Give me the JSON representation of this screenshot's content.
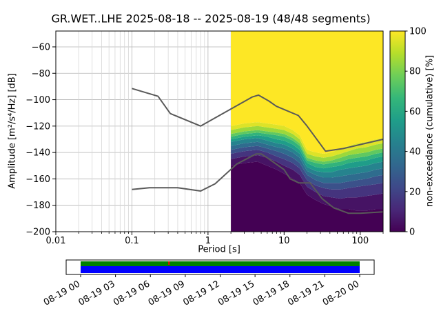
{
  "colors": {
    "noise_model_line": "#595959",
    "grid_major": "#b3b3b3",
    "grid_minor": "#d6d6d6",
    "timeline_green": "#008000",
    "timeline_blue": "#0000ff",
    "gap_red": "#ff0000",
    "viridis": [
      "#440154",
      "#482878",
      "#3e4989",
      "#31688e",
      "#26828e",
      "#1f9e89",
      "#35b779",
      "#6ece58",
      "#b5de2b",
      "#fde725"
    ]
  },
  "chart_data": {
    "type": "heatmap",
    "title": "GR.WET..LHE   2025-08-18 -- 2025-08-19  (48/48 segments)",
    "station": "GR.WET..LHE",
    "date_range": "2025-08-18 -- 2025-08-19",
    "segments": "48/48",
    "xlabel": "Period [s]",
    "ylabel": "Amplitude [m²/s⁴/Hz] [dB]",
    "xscale": "log",
    "xlim": [
      0.01,
      200
    ],
    "ylim": [
      -200,
      -48
    ],
    "x_ticks": [
      {
        "v": 0.01,
        "label": "0.01"
      },
      {
        "v": 0.1,
        "label": "0.1"
      },
      {
        "v": 1,
        "label": "1"
      },
      {
        "v": 10,
        "label": "10"
      },
      {
        "v": 100,
        "label": "100"
      }
    ],
    "y_ticks": [
      {
        "v": -60,
        "label": "−60"
      },
      {
        "v": -80,
        "label": "−80"
      },
      {
        "v": -100,
        "label": "−100"
      },
      {
        "v": -120,
        "label": "−120"
      },
      {
        "v": -140,
        "label": "−140"
      },
      {
        "v": -160,
        "label": "−160"
      },
      {
        "v": -180,
        "label": "−180"
      },
      {
        "v": -200,
        "label": "−200"
      }
    ],
    "colorbar": {
      "label": "non-exceedance (cumulative) [%]",
      "ticks": [
        {
          "v": 0,
          "label": "0"
        },
        {
          "v": 20,
          "label": "20"
        },
        {
          "v": 40,
          "label": "40"
        },
        {
          "v": 60,
          "label": "60"
        },
        {
          "v": 80,
          "label": "80"
        },
        {
          "v": 100,
          "label": "100"
        }
      ]
    },
    "periods_s": [
      2,
      3,
      4.5,
      6,
      8,
      10,
      13,
      16,
      20,
      26,
      33,
      42,
      55,
      70,
      90,
      120,
      160,
      200
    ],
    "percentiles": [
      0,
      10,
      20,
      30,
      40,
      50,
      60,
      70,
      80,
      90,
      100
    ],
    "percentile_curves_db": {
      "0": [
        -150,
        -148,
        -147,
        -150,
        -153,
        -156,
        -160,
        -163,
        -172,
        -176,
        -179,
        -181,
        -183,
        -183,
        -184,
        -184,
        -183,
        -183
      ],
      "10": [
        -145,
        -143,
        -142,
        -144,
        -147,
        -150,
        -153,
        -157,
        -166,
        -170,
        -173,
        -174,
        -175,
        -174,
        -174,
        -173,
        -172,
        -171
      ],
      "20": [
        -141,
        -139,
        -138,
        -140,
        -143,
        -145,
        -148,
        -152,
        -161,
        -165,
        -167,
        -168,
        -168,
        -167,
        -166,
        -165,
        -164,
        -163
      ],
      "30": [
        -138,
        -136,
        -135,
        -137,
        -139,
        -141,
        -144,
        -148,
        -157,
        -161,
        -163,
        -163,
        -163,
        -162,
        -161,
        -160,
        -158,
        -157
      ],
      "40": [
        -135,
        -133,
        -132,
        -134,
        -136,
        -137,
        -140,
        -144,
        -154,
        -157,
        -159,
        -159,
        -158,
        -157,
        -156,
        -155,
        -153,
        -152
      ],
      "50": [
        -132,
        -130,
        -129,
        -131,
        -133,
        -134,
        -137,
        -141,
        -151,
        -154,
        -155,
        -155,
        -153,
        -152,
        -151,
        -150,
        -148,
        -147
      ],
      "60": [
        -130,
        -128,
        -127,
        -128,
        -130,
        -131,
        -134,
        -138,
        -148,
        -151,
        -152,
        -151,
        -150,
        -148,
        -147,
        -146,
        -144,
        -143
      ],
      "70": [
        -128,
        -126,
        -125,
        -126,
        -127,
        -128,
        -131,
        -135,
        -146,
        -148,
        -149,
        -148,
        -147,
        -145,
        -144,
        -143,
        -141,
        -140
      ],
      "80": [
        -126,
        -124,
        -123,
        -124,
        -125,
        -126,
        -129,
        -133,
        -144,
        -146,
        -147,
        -146,
        -144,
        -142,
        -141,
        -140,
        -138,
        -137
      ],
      "90": [
        -123,
        -121,
        -120,
        -121,
        -122,
        -123,
        -126,
        -130,
        -141,
        -143,
        -144,
        -143,
        -141,
        -139,
        -137,
        -136,
        -134,
        -133
      ],
      "100": [
        -120,
        -118,
        -117,
        -118,
        -119,
        -120,
        -123,
        -127,
        -138,
        -140,
        -141,
        -140,
        -137,
        -135,
        -133,
        -132,
        -130,
        -129
      ]
    },
    "noise_models": {
      "nhnm": [
        [
          0.1,
          -91.5
        ],
        [
          0.22,
          -97.4
        ],
        [
          0.32,
          -110.5
        ],
        [
          0.8,
          -120
        ],
        [
          3.8,
          -98
        ],
        [
          4.6,
          -96.5
        ],
        [
          6.3,
          -101
        ],
        [
          7.9,
          -105
        ],
        [
          15.4,
          -112
        ],
        [
          20,
          -120
        ],
        [
          35,
          -139
        ],
        [
          60,
          -137
        ],
        [
          100,
          -134
        ],
        [
          200,
          -130
        ]
      ],
      "nlnm": [
        [
          0.1,
          -168
        ],
        [
          0.17,
          -166.7
        ],
        [
          0.4,
          -166.7
        ],
        [
          0.8,
          -169.2
        ],
        [
          1.24,
          -163.7
        ],
        [
          2.4,
          -148.6
        ],
        [
          4.3,
          -141.1
        ],
        [
          5,
          -141.1
        ],
        [
          6,
          -144
        ],
        [
          10,
          -153
        ],
        [
          12,
          -160
        ],
        [
          15.6,
          -163
        ],
        [
          22,
          -163
        ],
        [
          31.6,
          -175
        ],
        [
          45,
          -182
        ],
        [
          70,
          -186
        ],
        [
          100,
          -186
        ],
        [
          200,
          -185
        ]
      ]
    },
    "timeline": {
      "ticks": [
        {
          "hour": 0,
          "label": "08-19 00"
        },
        {
          "hour": 3,
          "label": "08-19 03"
        },
        {
          "hour": 6,
          "label": "08-19 06"
        },
        {
          "hour": 9,
          "label": "08-19 09"
        },
        {
          "hour": 12,
          "label": "08-19 12"
        },
        {
          "hour": 15,
          "label": "08-19 15"
        },
        {
          "hour": 18,
          "label": "08-19 18"
        },
        {
          "hour": 21,
          "label": "08-19 21"
        },
        {
          "hour": 24,
          "label": "08-20 00"
        }
      ],
      "coverage": {
        "start_hour": 0,
        "end_hour": 24
      },
      "gap_marker_hour": 7.6
    }
  }
}
